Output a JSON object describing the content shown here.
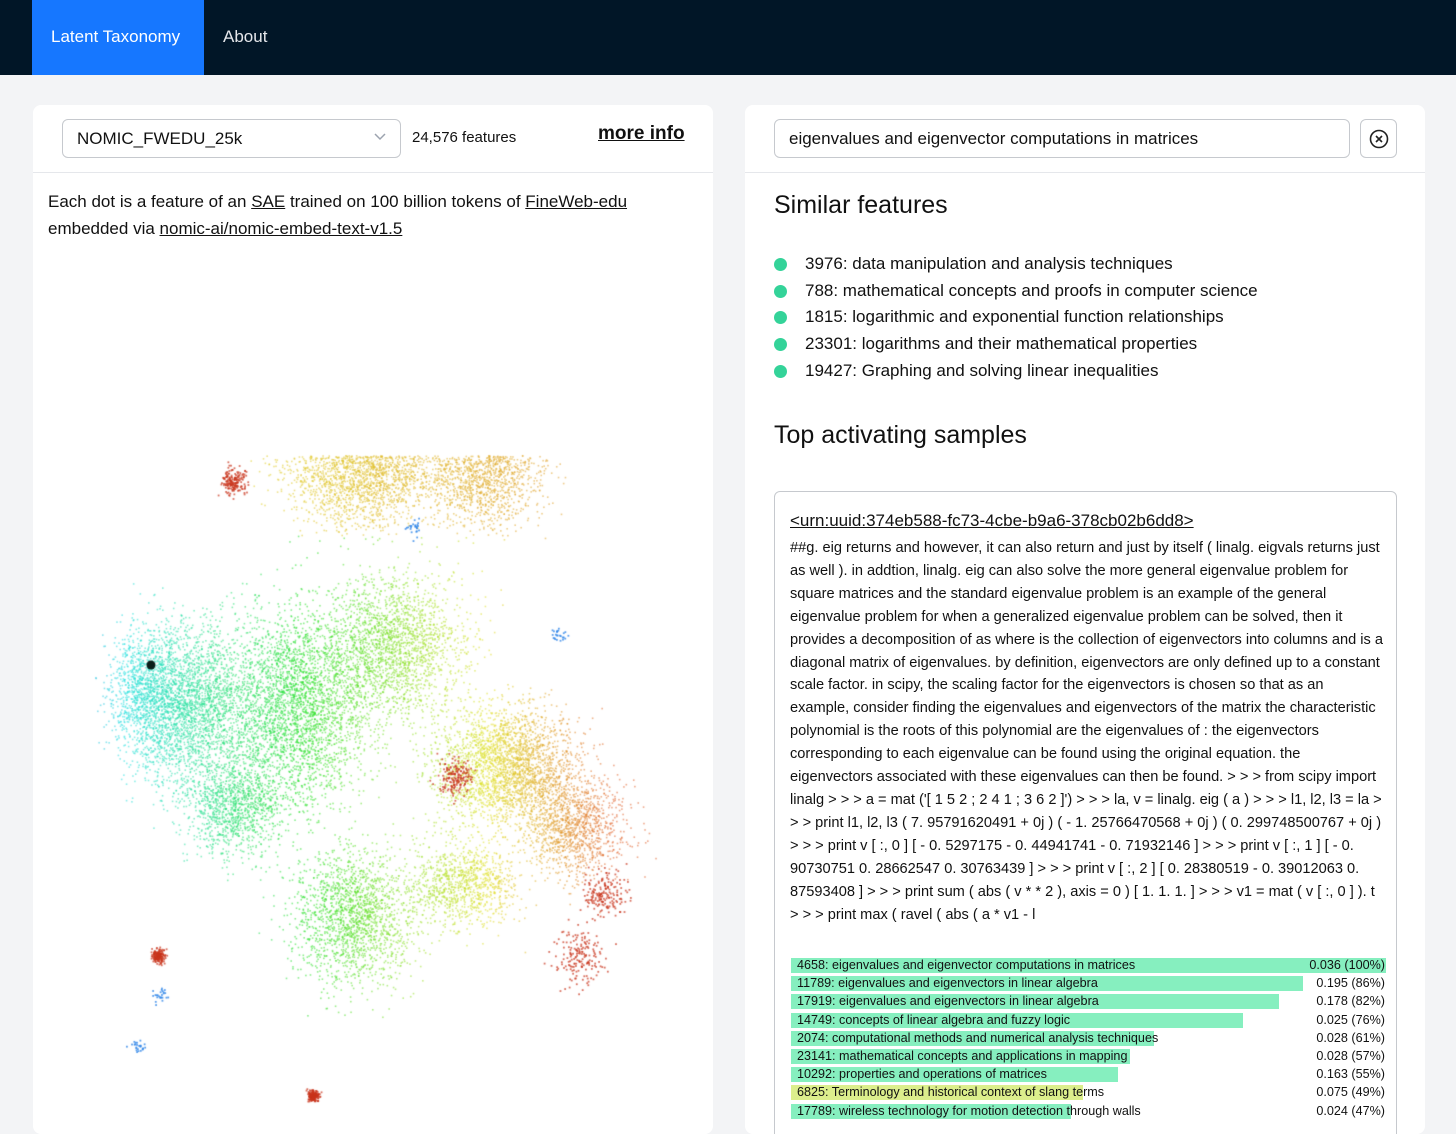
{
  "nav": {
    "items": [
      {
        "label": "Latent Taxonomy",
        "active": true
      },
      {
        "label": "About",
        "active": false
      }
    ]
  },
  "left": {
    "dataset_select": "NOMIC_FWEDU_25k",
    "feature_count": "24,576 features",
    "more_info": "more info",
    "desc": {
      "p1": "Each dot is a feature of an ",
      "sae": "SAE",
      "p2": " trained on 100 billion tokens of ",
      "fineweb": "FineWeb-edu",
      "p3": " embedded via ",
      "model": "nomic-ai/nomic-embed-text-v1.5"
    }
  },
  "right": {
    "search": {
      "value": "eigenvalues and eigenvector computations in matrices"
    },
    "similar_title": "Similar features",
    "similar": [
      "3976: data manipulation and analysis techniques",
      "788: mathematical concepts and proofs in computer science",
      "1815: logarithmic and exponential function relationships",
      "23301: logarithms and their mathematical properties",
      "19427: Graphing and solving linear inequalities"
    ],
    "top_title": "Top activating samples",
    "sample": {
      "link": "<urn:uuid:374eb588-fc73-4cbe-b9a6-378cb02b6dd8>",
      "text": "##g. eig returns and however, it can also return and just by itself ( linalg. eigvals returns just as well ). in addtion, linalg. eig can also solve the more general eigenvalue problem for square matrices and the standard eigenvalue problem is an example of the general eigenvalue problem for when a generalized eigenvalue problem can be solved, then it provides a decomposition of as where is the collection of eigenvectors into columns and is a diagonal matrix of eigenvalues. by definition, eigenvectors are only defined up to a constant scale factor. in scipy, the scaling factor for the eigenvectors is chosen so that as an example, consider finding the eigenvalues and eigenvectors of the matrix the characteristic polynomial is the roots of this polynomial are the eigenvalues of : the eigenvectors corresponding to each eigenvalue can be found using the original equation. the eigenvectors associated with these eigenvalues can then be found. > > > from scipy import linalg > > > a = mat ('[ 1 5 2 ; 2 4 1 ; 3 6 2 ]') > > > la, v = linalg. eig ( a ) > > > l1, l2, l3 = la > > > print l1, l2, l3 ( 7. 95791620491 + 0j ) ( - 1. 25766470568 + 0j ) ( 0. 299748500767 + 0j ) > > > print v [ :, 0 ] [ - 0. 5297175 - 0. 44941741 - 0. 71932146 ] > > > print v [ :, 1 ] [ - 0. 90730751 0. 28662547 0. 30763439 ] > > > print v [ :, 2 ] [ 0. 28380519 - 0. 39012063 0. 87593408 ] > > > print sum ( abs ( v * * 2 ), axis = 0 ) [ 1. 1. 1. ] > > > v1 = mat ( v [ :, 0 ] ). t > > > print max ( ravel ( abs ( a * v1 - l",
      "features": [
        {
          "label": "4658: eigenvalues and eigenvector computations in matrices",
          "value": "0.036 (100%)",
          "pct": 100,
          "color": "#86efbf"
        },
        {
          "label": "11789: eigenvalues and eigenvectors in linear algebra",
          "value": "0.195 (86%)",
          "pct": 86,
          "color": "#86efbf"
        },
        {
          "label": "17919: eigenvalues and eigenvectors in linear algebra",
          "value": "0.178 (82%)",
          "pct": 82,
          "color": "#86efbf"
        },
        {
          "label": "14749: concepts of linear algebra and fuzzy logic",
          "value": "0.025 (76%)",
          "pct": 76,
          "color": "#86efbf"
        },
        {
          "label": "2074: computational methods and numerical analysis techniques",
          "value": "0.028 (61%)",
          "pct": 61,
          "color": "#86efbf"
        },
        {
          "label": "23141: mathematical concepts and applications in mapping",
          "value": "0.028 (57%)",
          "pct": 57,
          "color": "#86efbf"
        },
        {
          "label": "10292: properties and operations of matrices",
          "value": "0.163 (55%)",
          "pct": 55,
          "color": "#86efbf"
        },
        {
          "label": "6825: Terminology and historical context of slang terms",
          "value": "0.075 (49%)",
          "pct": 49,
          "color": "#dcee8c"
        },
        {
          "label": "17789: wireless technology for motion detection through walls",
          "value": "0.024 (47%)",
          "pct": 47,
          "color": "#86efbf"
        }
      ]
    }
  },
  "colors": {
    "nav_bg": "#011627",
    "accent": "#1677ff",
    "similar_dot": "#34d399"
  }
}
